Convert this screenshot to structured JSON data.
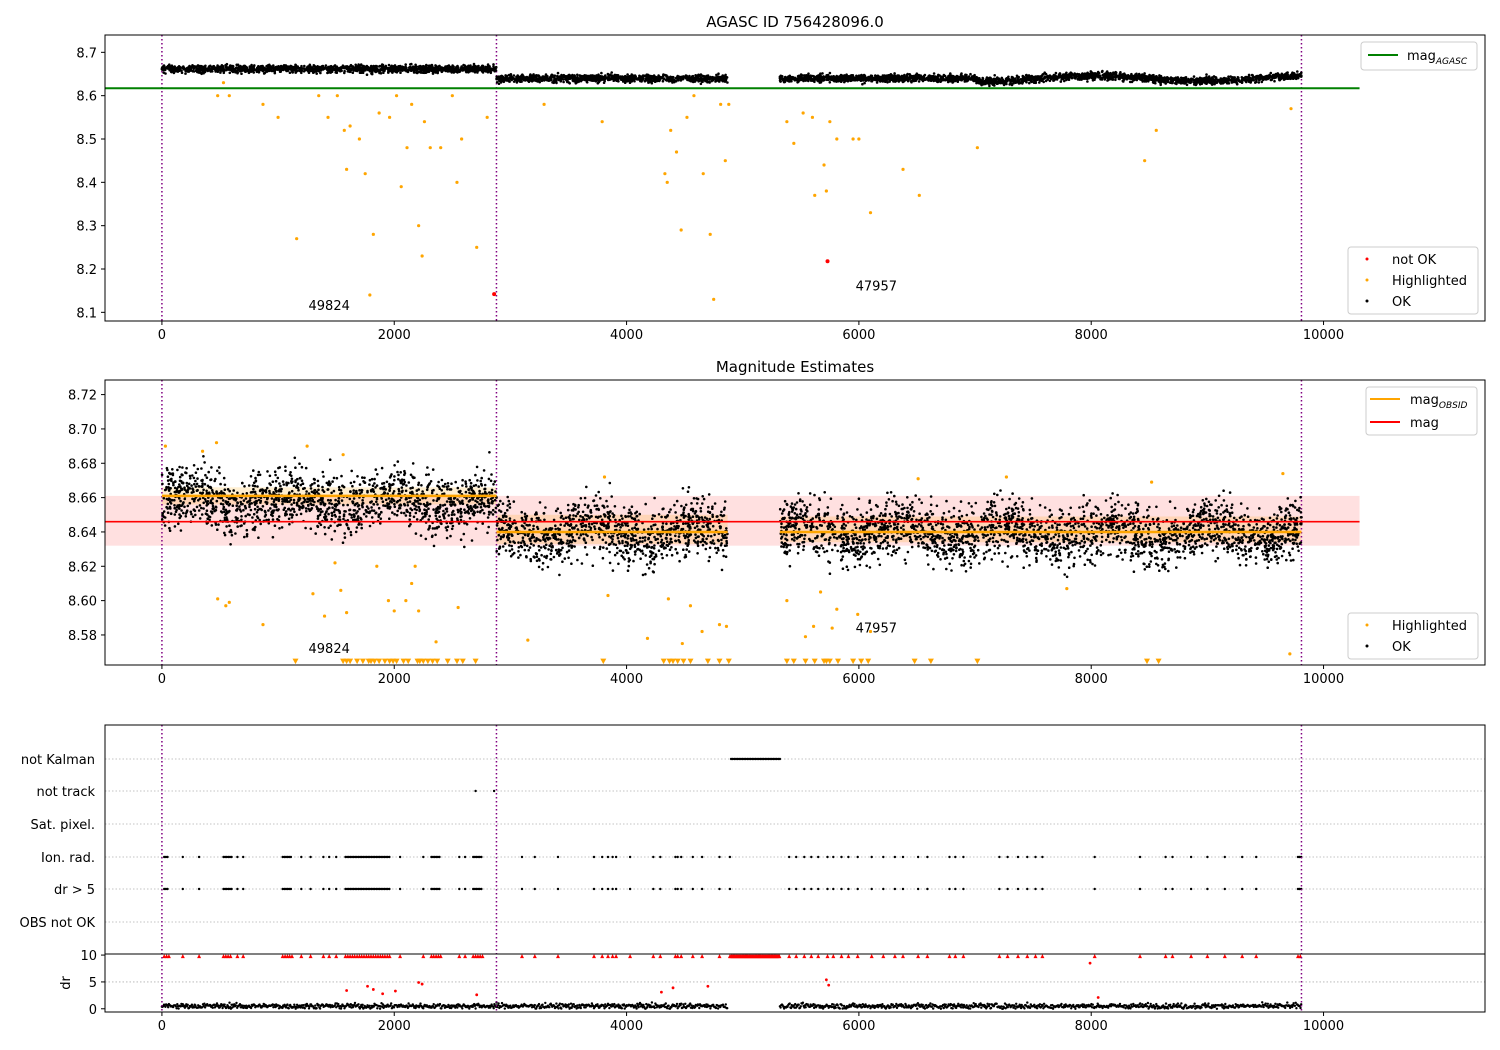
{
  "chart_data": [
    {
      "type": "scatter",
      "title": "AGASC ID 756428096.0",
      "xlabel": "",
      "ylabel": "",
      "xlim": [
        -490,
        11390
      ],
      "ylim": [
        8.08,
        8.74
      ],
      "xticks": [
        0,
        2000,
        4000,
        6000,
        8000,
        10000
      ],
      "yticks": [
        8.1,
        8.2,
        8.3,
        8.4,
        8.5,
        8.6,
        8.7
      ],
      "ytick_decimals": 1,
      "vlines": [
        0,
        2880,
        9810
      ],
      "obsid_labels": [
        {
          "text": "49824",
          "x": 1440,
          "y": 8.105
        },
        {
          "text": "47957",
          "x": 6150,
          "y": 8.15
        }
      ],
      "hlines": [
        {
          "name": "mag_AGASC",
          "y": 8.617,
          "x": [
            -490,
            10310
          ],
          "color": "#008000"
        }
      ],
      "segments": [
        {
          "x": [
            0,
            2880
          ],
          "mean": 8.662,
          "spread": 0.006
        },
        {
          "x": [
            2880,
            4870
          ],
          "mean": 8.64,
          "spread": 0.006
        },
        {
          "x": [
            5320,
            9810
          ],
          "mean": 8.64,
          "spread": 0.006
        }
      ],
      "series": [
        {
          "name": "not OK",
          "color": "#ff0000",
          "points": [
            [
              5730,
              8.218
            ],
            [
              2860,
              8.142
            ]
          ]
        },
        {
          "name": "Highlighted",
          "color": "#ffa500",
          "points": [
            [
              480,
              8.6
            ],
            [
              530,
              8.63
            ],
            [
              580,
              8.6
            ],
            [
              870,
              8.58
            ],
            [
              1000,
              8.55
            ],
            [
              1160,
              8.27
            ],
            [
              1350,
              8.6
            ],
            [
              1430,
              8.55
            ],
            [
              1510,
              8.6
            ],
            [
              1570,
              8.52
            ],
            [
              1590,
              8.43
            ],
            [
              1620,
              8.53
            ],
            [
              1700,
              8.5
            ],
            [
              1750,
              8.42
            ],
            [
              1790,
              8.14
            ],
            [
              1820,
              8.28
            ],
            [
              1870,
              8.56
            ],
            [
              1960,
              8.55
            ],
            [
              2020,
              8.6
            ],
            [
              2060,
              8.39
            ],
            [
              2110,
              8.48
            ],
            [
              2150,
              8.58
            ],
            [
              2210,
              8.3
            ],
            [
              2240,
              8.23
            ],
            [
              2260,
              8.54
            ],
            [
              2310,
              8.48
            ],
            [
              2400,
              8.48
            ],
            [
              2500,
              8.6
            ],
            [
              2540,
              8.4
            ],
            [
              2580,
              8.5
            ],
            [
              2710,
              8.25
            ],
            [
              2800,
              8.55
            ],
            [
              3290,
              8.58
            ],
            [
              3790,
              8.54
            ],
            [
              4330,
              8.42
            ],
            [
              4350,
              8.4
            ],
            [
              4380,
              8.52
            ],
            [
              4430,
              8.47
            ],
            [
              4470,
              8.29
            ],
            [
              4520,
              8.55
            ],
            [
              4580,
              8.6
            ],
            [
              4660,
              8.42
            ],
            [
              4720,
              8.28
            ],
            [
              4750,
              8.13
            ],
            [
              4810,
              8.58
            ],
            [
              4850,
              8.45
            ],
            [
              4880,
              8.58
            ],
            [
              5380,
              8.54
            ],
            [
              5440,
              8.49
            ],
            [
              5520,
              8.56
            ],
            [
              5600,
              8.55
            ],
            [
              5620,
              8.37
            ],
            [
              5700,
              8.44
            ],
            [
              5720,
              8.38
            ],
            [
              5750,
              8.54
            ],
            [
              5810,
              8.5
            ],
            [
              5950,
              8.5
            ],
            [
              6000,
              8.5
            ],
            [
              6100,
              8.33
            ],
            [
              6380,
              8.43
            ],
            [
              6520,
              8.37
            ],
            [
              7020,
              8.48
            ],
            [
              8460,
              8.45
            ],
            [
              8560,
              8.52
            ],
            [
              9720,
              8.57
            ]
          ]
        },
        {
          "name": "OK",
          "color": "#000000",
          "points": []
        }
      ],
      "legend": {
        "lines": "top-right",
        "points": "bottom-right"
      }
    },
    {
      "type": "scatter",
      "title": "Magnitude Estimates",
      "xlabel": "",
      "ylabel": "",
      "xlim": [
        -490,
        11390
      ],
      "ylim": [
        8.5625,
        8.7285
      ],
      "xticks": [
        0,
        2000,
        4000,
        6000,
        8000,
        10000
      ],
      "yticks": [
        8.58,
        8.6,
        8.62,
        8.64,
        8.66,
        8.68,
        8.7,
        8.72
      ],
      "ytick_decimals": 2,
      "vlines": [
        0,
        2880,
        9810
      ],
      "obsid_labels": [
        {
          "text": "49824",
          "x": 1440,
          "y": 8.5695
        },
        {
          "text": "47957",
          "x": 6150,
          "y": 8.5815
        }
      ],
      "mag": {
        "name": "mag",
        "value": 8.646,
        "band": [
          8.632,
          8.661
        ],
        "x": [
          -490,
          10310
        ],
        "color": "#ff0000"
      },
      "obsid_mags": [
        {
          "x": [
            0,
            2880
          ],
          "value": 8.661,
          "band": [
            8.656,
            8.666
          ]
        },
        {
          "x": [
            2880,
            4870
          ],
          "value": 8.64,
          "band": [
            8.633,
            8.65
          ]
        },
        {
          "x": [
            5320,
            9810
          ],
          "value": 8.64,
          "band": [
            8.634,
            8.649
          ]
        }
      ],
      "segments": [
        {
          "x": [
            0,
            2880
          ],
          "mean": 8.658,
          "spread": 0.012
        },
        {
          "x": [
            2880,
            4870
          ],
          "mean": 8.64,
          "spread": 0.012
        },
        {
          "x": [
            5320,
            9810
          ],
          "mean": 8.64,
          "spread": 0.012
        }
      ],
      "series": [
        {
          "name": "Highlighted",
          "color": "#ffa500",
          "points": [
            [
              30,
              8.69
            ],
            [
              350,
              8.687
            ],
            [
              470,
              8.692
            ],
            [
              480,
              8.601
            ],
            [
              550,
              8.597
            ],
            [
              580,
              8.599
            ],
            [
              870,
              8.586
            ],
            [
              1250,
              8.69
            ],
            [
              1300,
              8.604
            ],
            [
              1400,
              8.591
            ],
            [
              1490,
              8.622
            ],
            [
              1540,
              8.606
            ],
            [
              1560,
              8.685
            ],
            [
              1590,
              8.593
            ],
            [
              1800,
              8.565
            ],
            [
              1850,
              8.62
            ],
            [
              1950,
              8.6
            ],
            [
              2000,
              8.594
            ],
            [
              2100,
              8.6
            ],
            [
              2150,
              8.61
            ],
            [
              2180,
              8.62
            ],
            [
              2210,
              8.594
            ],
            [
              2360,
              8.576
            ],
            [
              2550,
              8.596
            ],
            [
              3150,
              8.577
            ],
            [
              3810,
              8.672
            ],
            [
              3840,
              8.603
            ],
            [
              4180,
              8.578
            ],
            [
              4360,
              8.601
            ],
            [
              4480,
              8.575
            ],
            [
              4550,
              8.597
            ],
            [
              4650,
              8.582
            ],
            [
              4800,
              8.586
            ],
            [
              4860,
              8.585
            ],
            [
              5380,
              8.6
            ],
            [
              5540,
              8.579
            ],
            [
              5610,
              8.585
            ],
            [
              5670,
              8.605
            ],
            [
              5770,
              8.584
            ],
            [
              5810,
              8.595
            ],
            [
              5990,
              8.592
            ],
            [
              6100,
              8.582
            ],
            [
              6510,
              8.671
            ],
            [
              7270,
              8.672
            ],
            [
              7790,
              8.607
            ],
            [
              8520,
              8.669
            ],
            [
              9650,
              8.674
            ],
            [
              9710,
              8.569
            ]
          ]
        },
        {
          "name": "OK",
          "color": "#000000",
          "points": []
        }
      ],
      "down_markers": {
        "y": 8.5645,
        "color": "#ffa500",
        "x": [
          1150,
          1560,
          1590,
          1620,
          1680,
          1730,
          1780,
          1800,
          1830,
          1870,
          1920,
          1960,
          1990,
          2020,
          2080,
          2120,
          2200,
          2220,
          2250,
          2290,
          2330,
          2370,
          2460,
          2540,
          2590,
          2700,
          3800,
          4320,
          4370,
          4400,
          4440,
          4490,
          4550,
          4700,
          4800,
          4880,
          5380,
          5440,
          5540,
          5620,
          5700,
          5720,
          5750,
          5820,
          5950,
          6020,
          6080,
          6480,
          6620,
          7020,
          8480,
          8580
        ]
      },
      "legend": {
        "lines": "top-right",
        "points": "bottom-right"
      }
    },
    {
      "type": "scatter",
      "title": "",
      "xlabel": "",
      "ylabel": "",
      "xlim": [
        -490,
        11390
      ],
      "xticks": [
        0,
        2000,
        4000,
        6000,
        8000,
        10000
      ],
      "vlines": [
        0,
        2880,
        9810
      ],
      "flag_rows": [
        "not Kalman",
        "not track",
        "Sat. pixel.",
        "Ion. rad.",
        "dr > 5",
        "OBS not OK"
      ],
      "flag_events": {
        "not Kalman": {
          "ranges": [
            [
              4900,
              5320
            ]
          ],
          "x": []
        },
        "not track": {
          "ranges": [],
          "x": [
            2700,
            2860
          ]
        },
        "Sat. pixel.": {
          "ranges": [],
          "x": []
        },
        "Ion. rad.": {
          "ranges": [
            [
              20,
              60
            ],
            [
              530,
              600
            ],
            [
              1040,
              1120
            ],
            [
              1580,
              1960
            ],
            [
              2320,
              2400
            ],
            [
              2680,
              2760
            ],
            [
              9780,
              9810
            ]
          ],
          "x": [
            180,
            320,
            650,
            700,
            1200,
            1280,
            1390,
            1440,
            1500,
            2050,
            2250,
            2560,
            2610,
            3100,
            3210,
            3410,
            3720,
            3790,
            3840,
            3880,
            3910,
            4030,
            4230,
            4290,
            4420,
            4440,
            4470,
            4570,
            4650,
            4800,
            4890,
            5400,
            5460,
            5530,
            5590,
            5650,
            5730,
            5780,
            5850,
            5910,
            5990,
            6110,
            6210,
            6310,
            6380,
            6510,
            6590,
            6780,
            6830,
            6900,
            7210,
            7280,
            7370,
            7450,
            7520,
            7580,
            8030,
            8420,
            8640,
            8700,
            8860,
            9000,
            9150,
            9300,
            9420
          ]
        },
        "dr > 5": {
          "ranges": [
            [
              20,
              60
            ],
            [
              530,
              600
            ],
            [
              1040,
              1120
            ],
            [
              1580,
              1960
            ],
            [
              2320,
              2400
            ],
            [
              2680,
              2760
            ],
            [
              9780,
              9810
            ]
          ],
          "x": [
            180,
            320,
            650,
            700,
            1200,
            1280,
            1390,
            1440,
            1500,
            2050,
            2250,
            2560,
            2610,
            3100,
            3210,
            3410,
            3720,
            3790,
            3840,
            3880,
            3910,
            4030,
            4230,
            4290,
            4420,
            4440,
            4470,
            4570,
            4650,
            4800,
            4890,
            5400,
            5460,
            5530,
            5590,
            5650,
            5730,
            5780,
            5850,
            5910,
            5990,
            6110,
            6210,
            6310,
            6380,
            6510,
            6590,
            6780,
            6830,
            6900,
            7210,
            7280,
            7370,
            7450,
            7520,
            7580,
            8030,
            8420,
            8640,
            8700,
            8860,
            9000,
            9150,
            9300,
            9420
          ]
        },
        "OBS not OK": {
          "ranges": [],
          "x": []
        }
      },
      "dr": {
        "ylabel": "dr",
        "ylim": [
          -0.6,
          10.2
        ],
        "yticks": [
          0,
          5,
          10
        ],
        "clip": 10,
        "clip_ranges": [
          [
            4900,
            5320
          ]
        ],
        "segments": [
          [
            0,
            2880
          ],
          [
            2880,
            4870
          ],
          [
            5320,
            9810
          ]
        ],
        "base_level": 0.5,
        "spikes": [
          [
            1590,
            3.4
          ],
          [
            1770,
            4.2
          ],
          [
            1820,
            3.6
          ],
          [
            1900,
            2.8
          ],
          [
            2010,
            3.3
          ],
          [
            2210,
            4.9
          ],
          [
            2240,
            4.6
          ],
          [
            2710,
            2.6
          ],
          [
            4300,
            3.1
          ],
          [
            4400,
            3.9
          ],
          [
            4700,
            4.2
          ],
          [
            5720,
            5.4
          ],
          [
            5740,
            4.4
          ],
          [
            7990,
            8.5
          ],
          [
            8060,
            2.1
          ]
        ]
      }
    }
  ],
  "legend_labels": {
    "mag_agasc_main": "mag",
    "mag_agasc_sub": "AGASC",
    "mag_obsid_main": "mag",
    "mag_obsid_sub": "OBSID",
    "mag": "mag",
    "not_ok": "not OK",
    "highlighted": "Highlighted",
    "ok": "OK"
  },
  "colors": {
    "ok": "#000000",
    "highlighted": "#ffa500",
    "not_ok": "#ff0000",
    "mag_agasc": "#008000",
    "mag_obsid": "#ffa500",
    "mag": "#ff0000",
    "vline": "#800080",
    "mag_band": "#ff0000",
    "obsid_band": "#ffa500"
  }
}
